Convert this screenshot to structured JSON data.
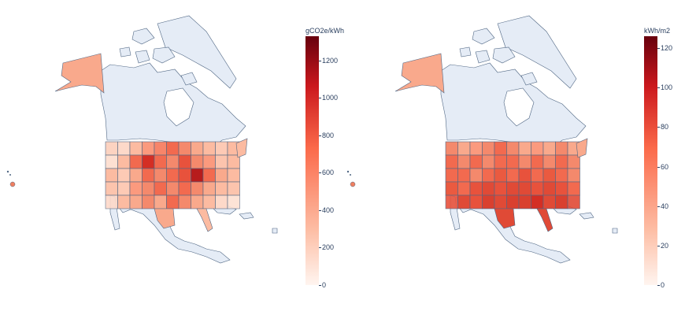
{
  "maps": [
    {
      "colorbar_title": "gCO2e/kWh",
      "colorbar_ticks": [
        "0",
        "200",
        "400",
        "600",
        "800",
        "1000",
        "1200"
      ],
      "colorbar_range": [
        0,
        1330
      ],
      "colorbar_tick_values": [
        0,
        200,
        400,
        600,
        800,
        1000,
        1200
      ]
    },
    {
      "colorbar_title": "kWh/m2",
      "colorbar_ticks": [
        "0",
        "20",
        "40",
        "60",
        "80",
        "100",
        "120"
      ],
      "colorbar_range": [
        0,
        126
      ],
      "colorbar_tick_values": [
        0,
        20,
        40,
        60,
        80,
        100,
        120
      ]
    }
  ],
  "colors": {
    "land": "#e5ecf6",
    "border": "#506784",
    "scale_low": "#fff5f0",
    "scale_mid": "#fb6a4a",
    "scale_high": "#67000d"
  }
}
